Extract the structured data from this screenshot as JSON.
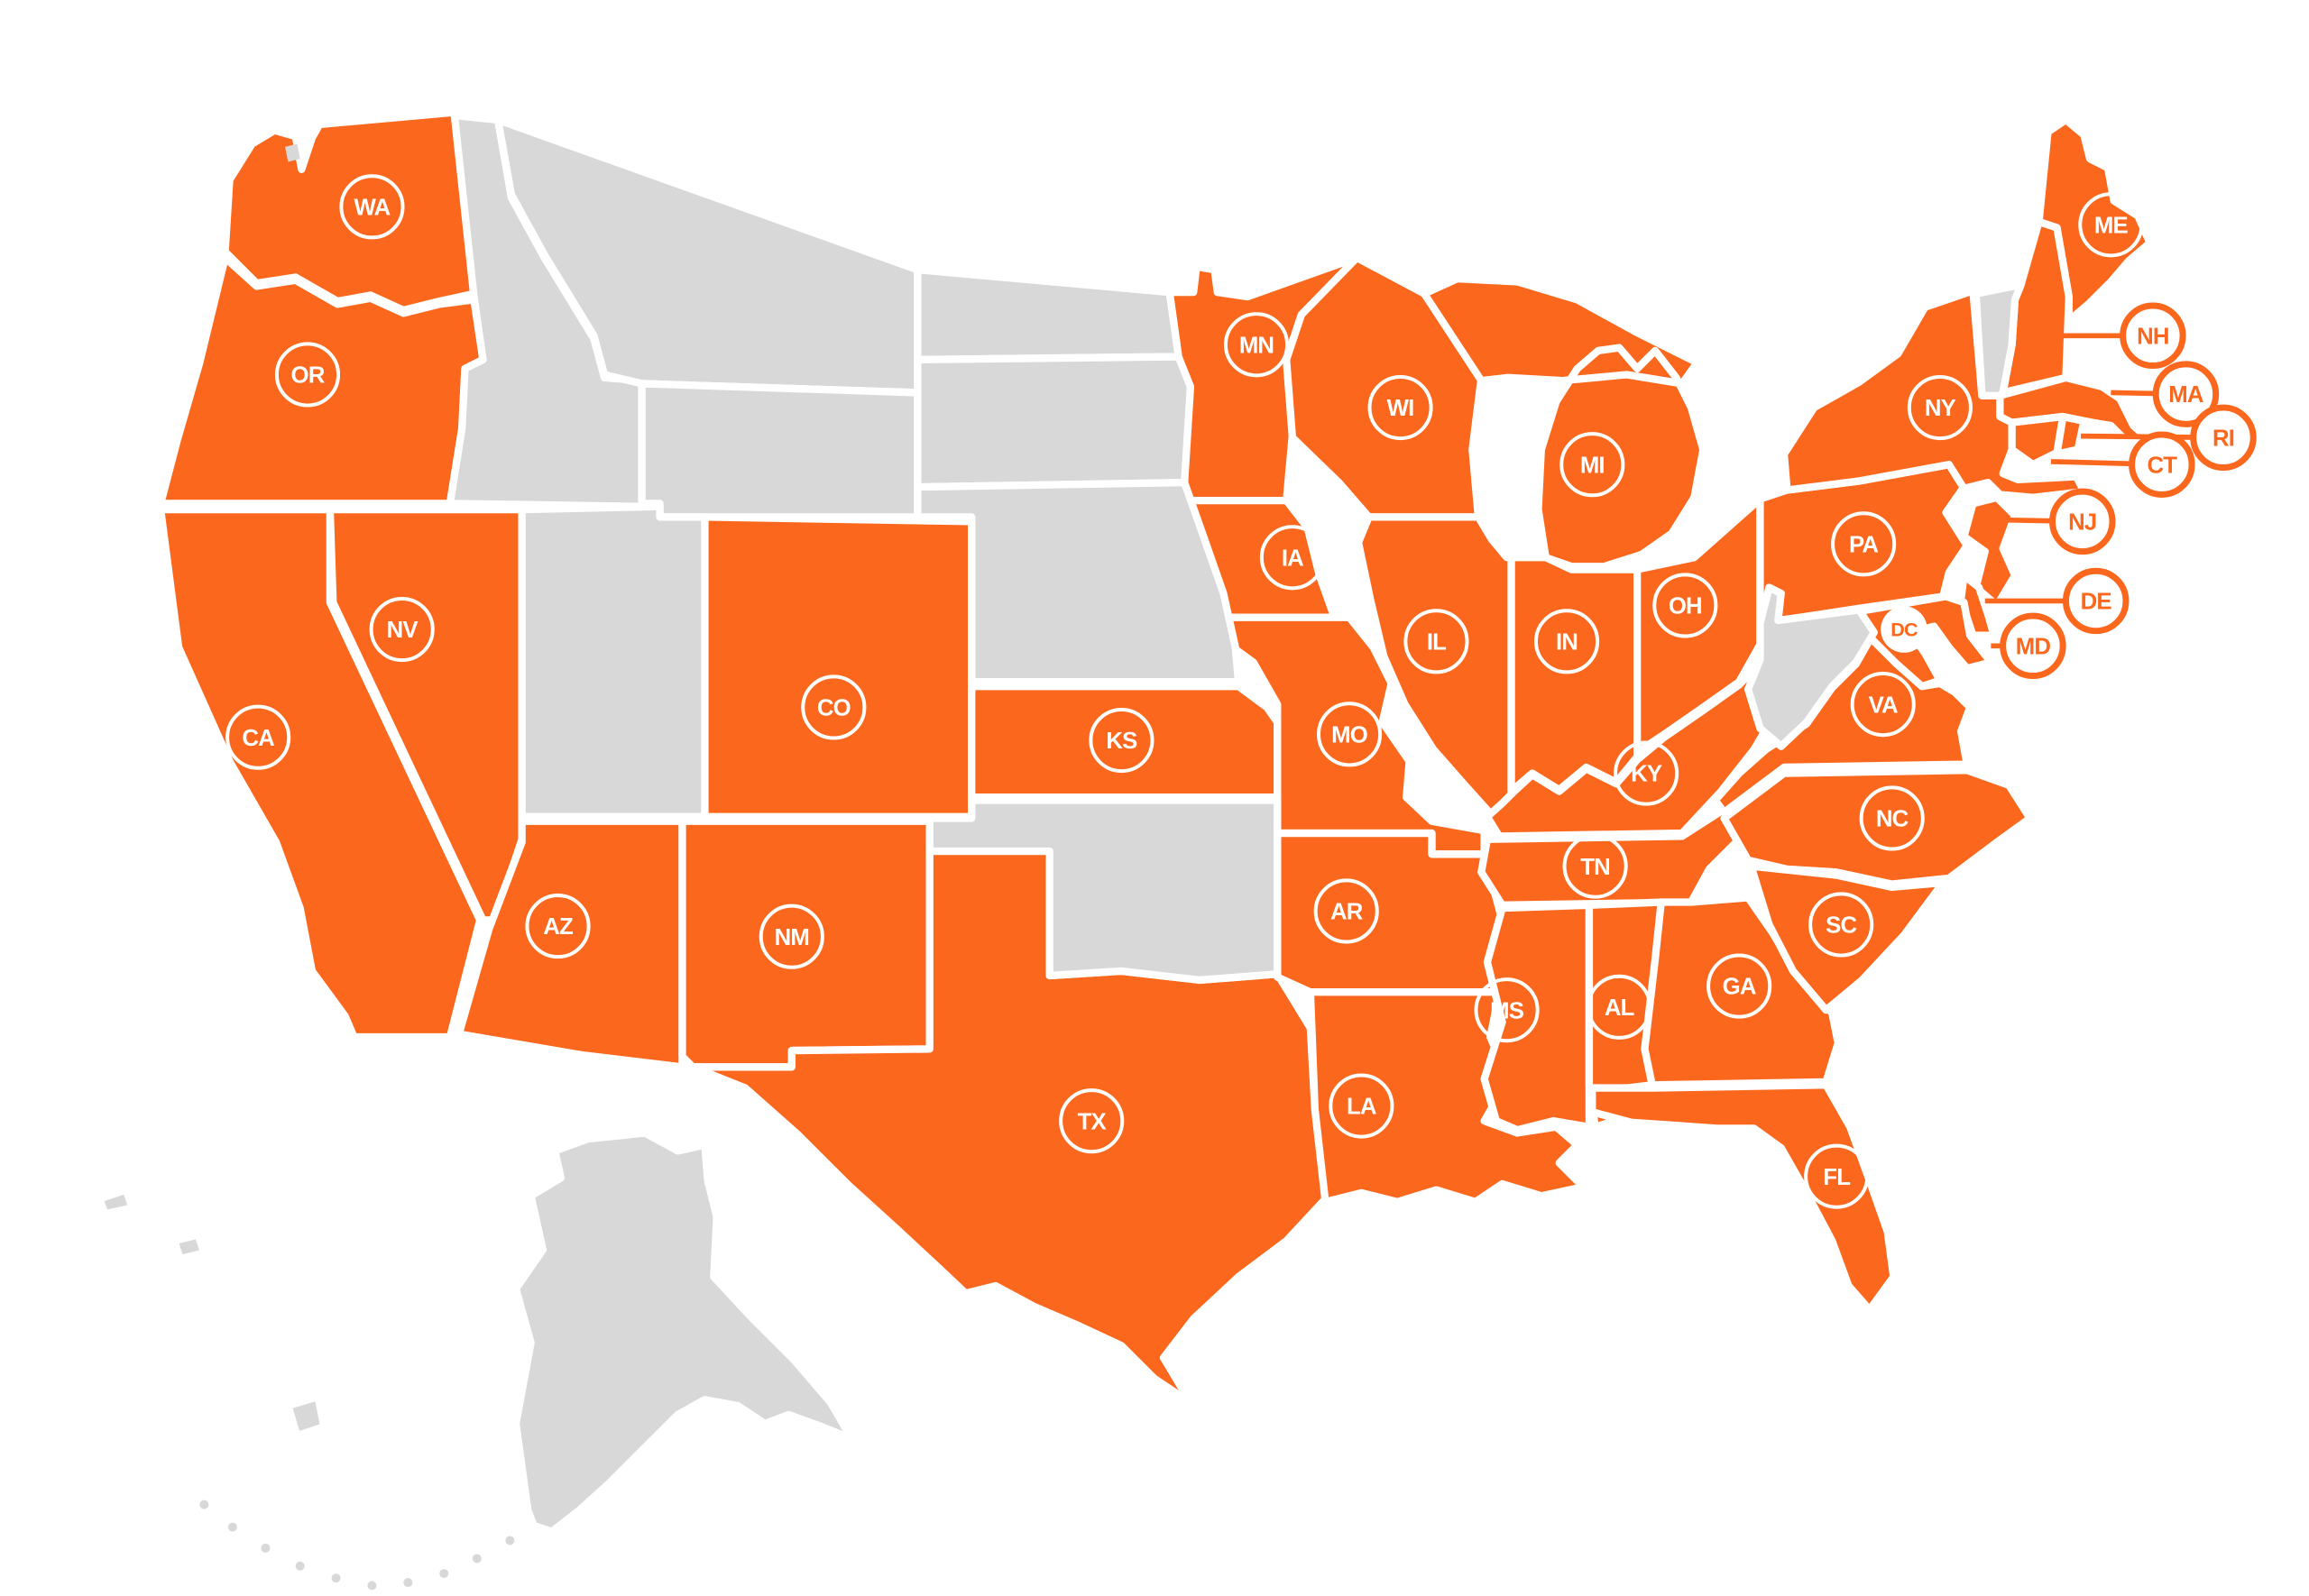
{
  "map": {
    "region": "United States",
    "colors": {
      "active": "#FB671C",
      "inactive": "#D8D8D8",
      "border": "#FFFFFF",
      "ring_label": "#FFFFFF",
      "callout_fill": "#FFFFFF",
      "callout_accent": "#FB671C"
    },
    "states": [
      {
        "abbr": "WA",
        "name": "Washington",
        "active": true,
        "label": "ring"
      },
      {
        "abbr": "OR",
        "name": "Oregon",
        "active": true,
        "label": "ring"
      },
      {
        "abbr": "CA",
        "name": "California",
        "active": true,
        "label": "ring"
      },
      {
        "abbr": "NV",
        "name": "Nevada",
        "active": true,
        "label": "ring"
      },
      {
        "abbr": "AZ",
        "name": "Arizona",
        "active": true,
        "label": "ring"
      },
      {
        "abbr": "NM",
        "name": "New Mexico",
        "active": true,
        "label": "ring"
      },
      {
        "abbr": "CO",
        "name": "Colorado",
        "active": true,
        "label": "ring"
      },
      {
        "abbr": "KS",
        "name": "Kansas",
        "active": true,
        "label": "ring"
      },
      {
        "abbr": "TX",
        "name": "Texas",
        "active": true,
        "label": "ring"
      },
      {
        "abbr": "MN",
        "name": "Minnesota",
        "active": true,
        "label": "ring"
      },
      {
        "abbr": "IA",
        "name": "Iowa",
        "active": true,
        "label": "ring"
      },
      {
        "abbr": "MO",
        "name": "Missouri",
        "active": true,
        "label": "ring"
      },
      {
        "abbr": "AR",
        "name": "Arkansas",
        "active": true,
        "label": "ring"
      },
      {
        "abbr": "LA",
        "name": "Louisiana",
        "active": true,
        "label": "ring"
      },
      {
        "abbr": "WI",
        "name": "Wisconsin",
        "active": true,
        "label": "ring"
      },
      {
        "abbr": "IL",
        "name": "Illinois",
        "active": true,
        "label": "ring"
      },
      {
        "abbr": "MI",
        "name": "Michigan",
        "active": true,
        "label": "ring"
      },
      {
        "abbr": "IN",
        "name": "Indiana",
        "active": true,
        "label": "ring"
      },
      {
        "abbr": "OH",
        "name": "Ohio",
        "active": true,
        "label": "ring"
      },
      {
        "abbr": "KY",
        "name": "Kentucky",
        "active": true,
        "label": "ring"
      },
      {
        "abbr": "TN",
        "name": "Tennessee",
        "active": true,
        "label": "ring"
      },
      {
        "abbr": "MS",
        "name": "Mississippi",
        "active": true,
        "label": "ring"
      },
      {
        "abbr": "AL",
        "name": "Alabama",
        "active": true,
        "label": "ring"
      },
      {
        "abbr": "GA",
        "name": "Georgia",
        "active": true,
        "label": "ring"
      },
      {
        "abbr": "FL",
        "name": "Florida",
        "active": true,
        "label": "ring"
      },
      {
        "abbr": "SC",
        "name": "South Carolina",
        "active": true,
        "label": "ring"
      },
      {
        "abbr": "NC",
        "name": "North Carolina",
        "active": true,
        "label": "ring"
      },
      {
        "abbr": "VA",
        "name": "Virginia",
        "active": true,
        "label": "ring"
      },
      {
        "abbr": "PA",
        "name": "Pennsylvania",
        "active": true,
        "label": "ring"
      },
      {
        "abbr": "NY",
        "name": "New York",
        "active": true,
        "label": "ring"
      },
      {
        "abbr": "ME",
        "name": "Maine",
        "active": true,
        "label": "ring"
      },
      {
        "abbr": "NH",
        "name": "New Hampshire",
        "active": true,
        "label": "callout"
      },
      {
        "abbr": "MA",
        "name": "Massachusetts",
        "active": true,
        "label": "callout"
      },
      {
        "abbr": "RI",
        "name": "Rhode Island",
        "active": true,
        "label": "callout"
      },
      {
        "abbr": "CT",
        "name": "Connecticut",
        "active": true,
        "label": "callout"
      },
      {
        "abbr": "NJ",
        "name": "New Jersey",
        "active": true,
        "label": "callout"
      },
      {
        "abbr": "DE",
        "name": "Delaware",
        "active": true,
        "label": "callout"
      },
      {
        "abbr": "MD",
        "name": "Maryland",
        "active": true,
        "label": "callout"
      },
      {
        "abbr": "DC",
        "name": "Washington, D.C.",
        "active": true,
        "label": "badge"
      },
      {
        "abbr": "ID",
        "name": "Idaho",
        "active": false,
        "label": "none"
      },
      {
        "abbr": "MT",
        "name": "Montana",
        "active": false,
        "label": "none"
      },
      {
        "abbr": "WY",
        "name": "Wyoming",
        "active": false,
        "label": "none"
      },
      {
        "abbr": "UT",
        "name": "Utah",
        "active": false,
        "label": "none"
      },
      {
        "abbr": "ND",
        "name": "North Dakota",
        "active": false,
        "label": "none"
      },
      {
        "abbr": "SD",
        "name": "South Dakota",
        "active": false,
        "label": "none"
      },
      {
        "abbr": "NE",
        "name": "Nebraska",
        "active": false,
        "label": "none"
      },
      {
        "abbr": "OK",
        "name": "Oklahoma",
        "active": false,
        "label": "none"
      },
      {
        "abbr": "WV",
        "name": "West Virginia",
        "active": false,
        "label": "none"
      },
      {
        "abbr": "VT",
        "name": "Vermont",
        "active": false,
        "label": "none"
      },
      {
        "abbr": "AK",
        "name": "Alaska",
        "active": false,
        "label": "none"
      }
    ]
  }
}
